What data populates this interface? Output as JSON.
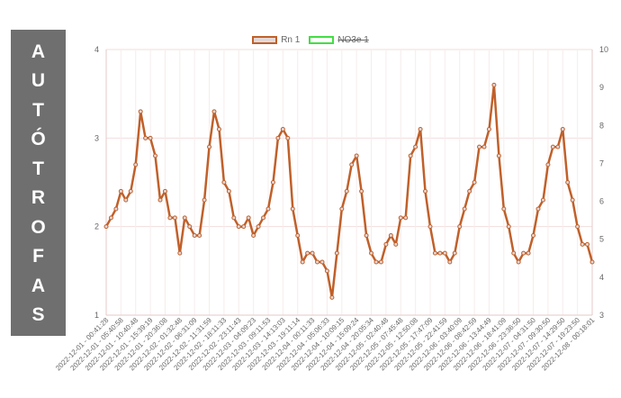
{
  "side_banner": {
    "letters": [
      "A",
      "U",
      "T",
      "Ó",
      "T",
      "R",
      "O",
      "F",
      "A",
      "S"
    ]
  },
  "legend": [
    {
      "label": "Rn 1",
      "border": "#c0602a",
      "fill": "#e3d8d8",
      "hidden": false
    },
    {
      "label": "NO3e 1",
      "border": "#44dd44",
      "fill": "#ffffff",
      "hidden": true
    }
  ],
  "chart_data": {
    "type": "line",
    "y_left": {
      "min": 1,
      "max": 4,
      "ticks": [
        1,
        2,
        3,
        4
      ]
    },
    "y_right": {
      "min": 3,
      "max": 10,
      "ticks": [
        3,
        4,
        5,
        6,
        7,
        8,
        9,
        10
      ]
    },
    "x_tick_labels": [
      "2022-12-01 - 00:41:28",
      "2022-12-01 - 05:40:58",
      "2022-12-01 - 10:40:48",
      "2022-12-01 - 15:39:19",
      "2022-12-01 - 20:36:08",
      "2022-12-02 - 01:32:48",
      "2022-12-02 - 06:31:09",
      "2022-12-02 - 11:31:59",
      "2022-12-02 - 18:11:33",
      "2022-12-02 - 23:11:43",
      "2022-12-03 - 04:09:23",
      "2022-12-03 - 09:11:53",
      "2022-12-03 - 14:13:03",
      "2022-12-03 - 19:11:14",
      "2022-12-04 - 00:11:33",
      "2022-12-04 - 05:06:33",
      "2022-12-04 - 10:09:15",
      "2022-12-04 - 15:09:24",
      "2022-12-04 - 20:05:34",
      "2022-12-05 - 02:40:48",
      "2022-12-05 - 07:45:48",
      "2022-12-05 - 12:50:08",
      "2022-12-05 - 17:47:09",
      "2022-12-05 - 22:41:59",
      "2022-12-06 - 03:40:09",
      "2022-12-06 - 08:42:59",
      "2022-12-06 - 13:44:49",
      "2022-12-06 - 18:41:09",
      "2022-12-06 - 23:36:50",
      "2022-12-07 - 04:31:50",
      "2022-12-07 - 09:30:50",
      "2022-12-07 - 14:29:50",
      "2022-12-07 - 19:23:50",
      "2022-12-08 - 00:18:01"
    ],
    "series": [
      {
        "name": "Rn 1",
        "axis": "left",
        "color": "#c0602a",
        "values": [
          2.0,
          2.1,
          2.2,
          2.4,
          2.3,
          2.4,
          2.7,
          3.3,
          3.0,
          3.0,
          2.8,
          2.3,
          2.4,
          2.1,
          2.1,
          1.7,
          2.1,
          2.0,
          1.9,
          1.9,
          2.3,
          2.9,
          3.3,
          3.1,
          2.5,
          2.4,
          2.1,
          2.0,
          2.0,
          2.1,
          1.9,
          2.0,
          2.1,
          2.2,
          2.5,
          3.0,
          3.1,
          3.0,
          2.2,
          1.9,
          1.6,
          1.7,
          1.7,
          1.6,
          1.6,
          1.5,
          1.2,
          1.7,
          2.2,
          2.4,
          2.7,
          2.8,
          2.4,
          1.9,
          1.7,
          1.6,
          1.6,
          1.8,
          1.9,
          1.8,
          2.1,
          2.1,
          2.8,
          2.9,
          3.1,
          2.4,
          2.0,
          1.7,
          1.7,
          1.7,
          1.6,
          1.7,
          2.0,
          2.2,
          2.4,
          2.5,
          2.9,
          2.9,
          3.1,
          3.6,
          2.8,
          2.2,
          2.0,
          1.7,
          1.6,
          1.7,
          1.7,
          1.9,
          2.2,
          2.3,
          2.7,
          2.9,
          2.9,
          3.1,
          2.5,
          2.3,
          2.0,
          1.8,
          1.8,
          1.6
        ]
      }
    ]
  }
}
